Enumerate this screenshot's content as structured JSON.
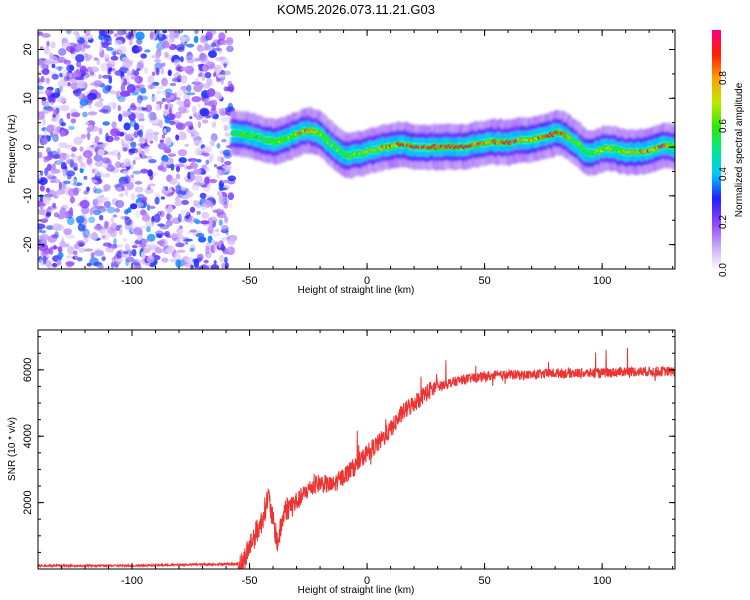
{
  "title": "KOM5.2026.073.11.21.G03",
  "chart_data": [
    {
      "id": "spectrogram",
      "type": "heatmap",
      "xlabel": "Height of straight line (km)",
      "ylabel": "Frequency (Hz)",
      "xlim": [
        -140,
        131
      ],
      "ylim": [
        -25,
        24
      ],
      "xticks": [
        -100,
        -50,
        0,
        50,
        100
      ],
      "yticks": [
        -20,
        -10,
        0,
        10,
        20
      ],
      "noise_region_x": [
        -140,
        -57
      ],
      "signal_trace": {
        "x": [
          -57,
          -50,
          -44,
          -38,
          -33,
          -28,
          -24,
          -20,
          -16,
          -12,
          -8,
          -4,
          0,
          4,
          8,
          12,
          16,
          22,
          28,
          34,
          40,
          46,
          52,
          58,
          62,
          66,
          70,
          74,
          78,
          82,
          86,
          90,
          94,
          98,
          102,
          106,
          110,
          116,
          122,
          126,
          131
        ],
        "frequency_hz": [
          3,
          2.5,
          1.5,
          1.0,
          2.0,
          3.0,
          3.5,
          3.0,
          1.0,
          -0.5,
          -2.0,
          -1.5,
          -1.0,
          -0.5,
          0.0,
          0.5,
          0.5,
          0.0,
          0.0,
          0.0,
          0.0,
          0.5,
          1.0,
          1.0,
          1.0,
          1.5,
          1.5,
          2.0,
          2.5,
          3.0,
          2.0,
          0.5,
          -1.5,
          -1.0,
          0.0,
          -0.5,
          -1.0,
          -1.0,
          -0.5,
          0.5,
          0.0
        ],
        "amplitude": [
          0.55,
          0.5,
          0.5,
          0.6,
          0.6,
          0.75,
          0.85,
          0.7,
          0.55,
          0.6,
          0.5,
          0.6,
          0.75,
          0.7,
          0.85,
          0.75,
          0.9,
          0.95,
          0.95,
          0.95,
          0.95,
          0.9,
          0.8,
          0.9,
          0.95,
          0.8,
          0.7,
          0.85,
          0.95,
          0.9,
          0.7,
          0.55,
          0.5,
          0.6,
          0.7,
          0.65,
          0.7,
          0.75,
          0.8,
          0.9,
          0.6
        ]
      },
      "colorbar": {
        "label": "Normalized spectral amplitude",
        "range": [
          0,
          1
        ],
        "ticks": [
          "0.0",
          "0.2",
          "0.4",
          "0.6",
          "0.8"
        ],
        "tick_values": [
          0,
          0.2,
          0.4,
          0.6,
          0.8
        ],
        "colors": [
          "#ffffff",
          "#c8a8f8",
          "#9040ff",
          "#2020ff",
          "#00c8ff",
          "#00e890",
          "#30e800",
          "#c0e800",
          "#ffa000",
          "#ff2000",
          "#ff0080"
        ]
      }
    },
    {
      "id": "snr",
      "type": "line",
      "xlabel": "Height of straight line (km)",
      "ylabel": "SNR (10 * v/v)",
      "xlim": [
        -140,
        131
      ],
      "ylim": [
        0,
        7200
      ],
      "xticks": [
        -100,
        -50,
        0,
        50,
        100
      ],
      "yticks": [
        2000,
        4000,
        6000
      ],
      "color": "#ee3333",
      "series": [
        {
          "name": "SNR",
          "x": [
            -140,
            -100,
            -60,
            -53,
            -50,
            -45,
            -42,
            -40,
            -38,
            -35,
            -30,
            -25,
            -20,
            -15,
            -10,
            -5,
            0,
            5,
            10,
            15,
            20,
            25,
            30,
            35,
            40,
            50,
            60,
            70,
            80,
            90,
            100,
            110,
            120,
            131
          ],
          "y": [
            100,
            100,
            150,
            150,
            700,
            1400,
            2200,
            1400,
            800,
            1800,
            2000,
            2400,
            2600,
            2500,
            2800,
            3100,
            3500,
            3800,
            4200,
            4700,
            5000,
            5300,
            5500,
            5600,
            5700,
            5800,
            5850,
            5850,
            5900,
            5900,
            5900,
            5950,
            5950,
            5950
          ]
        }
      ]
    }
  ]
}
